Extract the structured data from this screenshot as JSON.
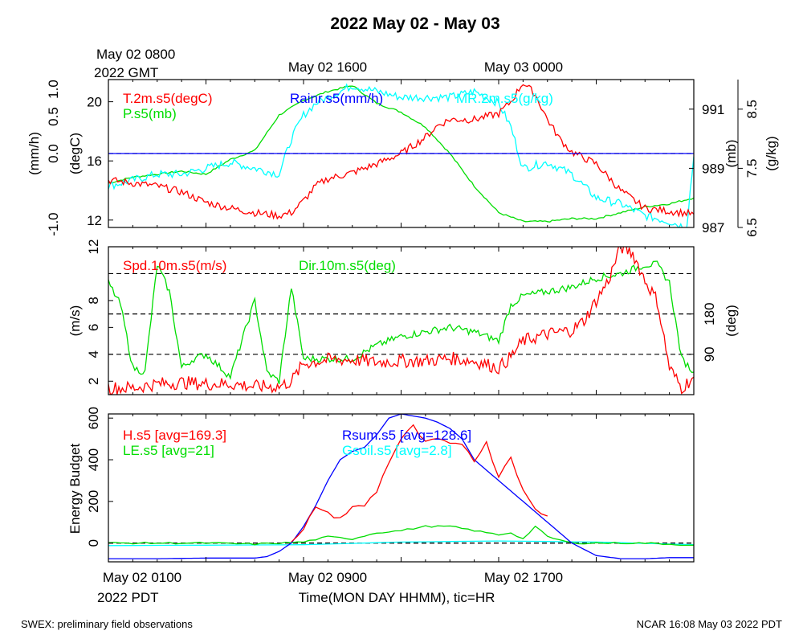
{
  "title": "2022 May 02 - May 03",
  "gmt_label_1": "May 02 0800",
  "gmt_label_2": "2022 GMT",
  "gmt_ticks": [
    "May 02 1600",
    "May 03 0000"
  ],
  "pdt_ticks": [
    "May 02 0100",
    "May 02 0900",
    "May 02 1700"
  ],
  "pdt_year": "2022 PDT",
  "xlabel": "Time(MON DAY HHMM), tic=HR",
  "footer_left": "SWEX: preliminary field observations",
  "footer_right": "NCAR 16:08 May 03 2022 PDT",
  "colors": {
    "red": "#ff0000",
    "green": "#00dd00",
    "blue": "#0000ff",
    "cyan": "#00ffff",
    "black": "#000000"
  },
  "chart_data": [
    {
      "type": "line",
      "panel": "top",
      "x_hours_local": [
        0,
        24
      ],
      "legend": {
        "temp": "T.2m.s5(degC)",
        "pres": "P.s5(mb)",
        "rain": "Rainr.s5(mm/h)",
        "mr": "MR.2m.s5(g/kg)"
      },
      "axes": {
        "rain": {
          "label": "(mm/h)",
          "ylim": [
            -1.0,
            1.0
          ],
          "ticks": [
            "1.0",
            "0.5",
            "0.0",
            "-1.0"
          ]
        },
        "temp": {
          "label": "(degC)",
          "ylim": [
            11.5,
            21.5
          ],
          "ticks": [
            "20",
            "16",
            "12"
          ]
        },
        "pres": {
          "label": "(mb)",
          "ylim": [
            987,
            992
          ],
          "ticks": [
            "991",
            "989",
            "987"
          ]
        },
        "mr": {
          "label": "(g/kg)",
          "ylim": [
            6.5,
            9.0
          ],
          "ticks": [
            "8.5",
            "7.5",
            "6.5"
          ]
        }
      },
      "series": [
        {
          "name": "T.2m.s5(degC)",
          "axis": "temp",
          "x": [
            0,
            1,
            2,
            3,
            4,
            5,
            6,
            7,
            7.5,
            8,
            8.5,
            9,
            10,
            11,
            12,
            13,
            13.5,
            14,
            15,
            16,
            16.5,
            17,
            17.5,
            18,
            18.5,
            19,
            20,
            21,
            22,
            23,
            24
          ],
          "y": [
            14.7,
            14.5,
            14.3,
            13.9,
            13.2,
            12.8,
            12.5,
            12.3,
            12.5,
            13.3,
            14.3,
            14.8,
            15.2,
            15.8,
            16.5,
            17.6,
            18.4,
            18.8,
            18.8,
            19.2,
            20.0,
            21.3,
            20.5,
            18.8,
            17.5,
            16.6,
            15.8,
            14.0,
            12.8,
            12.6,
            12.4
          ]
        },
        {
          "name": "P.s5(mb)",
          "axis": "pres",
          "x": [
            0,
            1,
            2,
            3,
            4,
            5,
            6,
            7,
            8,
            9,
            10,
            11,
            12,
            13,
            14,
            15,
            16,
            17,
            18,
            19,
            20,
            21,
            22,
            23,
            24
          ],
          "y": [
            988.5,
            988.7,
            988.8,
            988.9,
            988.8,
            989.3,
            989.6,
            990.8,
            991.3,
            991.6,
            991.8,
            991.2,
            990.9,
            990.4,
            989.5,
            988.4,
            987.5,
            987.2,
            987.2,
            987.3,
            987.3,
            987.5,
            987.7,
            987.8,
            988.0
          ]
        },
        {
          "name": "Rainr.s5(mm/h)",
          "axis": "rain",
          "x": [
            0,
            24
          ],
          "y": [
            0,
            0
          ]
        },
        {
          "name": "MR.2m.s5(g/kg)",
          "axis": "mr",
          "x": [
            0,
            1,
            2,
            3,
            4,
            5,
            6,
            7,
            7.5,
            8,
            8.5,
            9,
            10,
            11,
            12,
            13,
            14,
            15,
            16,
            16.5,
            17,
            18,
            19,
            20,
            21,
            22,
            23,
            23.7,
            24
          ],
          "y": [
            7.2,
            7.3,
            7.4,
            7.4,
            7.5,
            7.6,
            7.5,
            7.4,
            8.0,
            8.4,
            8.6,
            8.7,
            8.9,
            8.8,
            8.7,
            8.7,
            8.7,
            8.8,
            8.6,
            8.2,
            7.5,
            7.6,
            7.4,
            7.0,
            6.9,
            6.7,
            6.6,
            6.5,
            7.7
          ]
        }
      ]
    },
    {
      "type": "line",
      "panel": "middle",
      "x_hours_local": [
        0,
        24
      ],
      "legend": {
        "spd": "Spd.10m.s5(m/s)",
        "dir": "Dir.10m.s5(deg)"
      },
      "axes": {
        "spd": {
          "label": "(m/s)",
          "ylim": [
            1,
            12
          ],
          "ticks": [
            "12",
            "8",
            "6",
            "4",
            "2"
          ]
        },
        "dir": {
          "label": "(deg)",
          "ylim": [
            0,
            330
          ],
          "ticks": [
            "180",
            "90"
          ],
          "ref_lines": [
            90,
            180,
            270
          ]
        }
      },
      "series": [
        {
          "name": "Spd.10m.s5(m/s)",
          "axis": "spd",
          "x": [
            0,
            1,
            2,
            3,
            4,
            5,
            6,
            7,
            7.5,
            8,
            9,
            10,
            11,
            12,
            13,
            14,
            15,
            16,
            16.5,
            17,
            18,
            19,
            19.5,
            20,
            20.5,
            21,
            21.5,
            22,
            22.5,
            23,
            23.5,
            24
          ],
          "y": [
            1.5,
            1.5,
            1.8,
            1.9,
            1.8,
            1.8,
            1.6,
            1.6,
            2.0,
            3.3,
            3.6,
            3.6,
            3.4,
            3.5,
            3.5,
            3.7,
            3.5,
            3.0,
            3.8,
            5.0,
            5.5,
            5.8,
            6.5,
            8.0,
            9.5,
            12.0,
            11.5,
            9.5,
            8.0,
            3.0,
            1.5,
            2.3
          ]
        },
        {
          "name": "Dir.10m.s5(deg)",
          "axis": "dir",
          "x": [
            0,
            0.5,
            1,
            1.5,
            2,
            2.5,
            3,
            3.5,
            4,
            5,
            6,
            6.5,
            7,
            7.5,
            8,
            9,
            10,
            11,
            12,
            13,
            14,
            15,
            16,
            16.5,
            17,
            18,
            19,
            20,
            21,
            22,
            22.5,
            23,
            23.5,
            24
          ],
          "y": [
            250,
            200,
            60,
            50,
            290,
            230,
            60,
            80,
            90,
            40,
            210,
            50,
            30,
            240,
            80,
            80,
            80,
            110,
            130,
            140,
            150,
            140,
            120,
            200,
            220,
            230,
            240,
            260,
            270,
            290,
            290,
            250,
            80,
            50
          ]
        }
      ]
    },
    {
      "type": "line",
      "panel": "bottom",
      "ylabel": "Energy Budget",
      "ylim": [
        -90,
        620
      ],
      "yticks": [
        "600",
        "400",
        "200",
        "0"
      ],
      "x_hours_local": [
        0,
        24
      ],
      "legend": {
        "h": "H.s5 [avg=169.3]",
        "le": "LE.s5 [avg=21]",
        "rsum": "Rsum.s5 [avg=128.6]",
        "gsoil": "Gsoil.s5 [avg=2.8]"
      },
      "series": [
        {
          "name": "H.s5 [avg=169.3]",
          "x": [
            7.5,
            8,
            8.5,
            9,
            9.5,
            10,
            10.5,
            11,
            11.5,
            12,
            12.5,
            13,
            13.5,
            14,
            14.5,
            15,
            15.5,
            16,
            16.5,
            17,
            17.5,
            18
          ],
          "y": [
            0,
            60,
            180,
            140,
            120,
            170,
            180,
            250,
            390,
            500,
            560,
            480,
            500,
            470,
            480,
            400,
            480,
            320,
            420,
            250,
            160,
            130
          ]
        },
        {
          "name": "LE.s5 [avg=21]",
          "x": [
            0,
            2,
            4,
            6,
            7,
            8,
            9,
            10,
            11,
            12,
            13,
            14,
            15,
            16,
            16.5,
            17,
            17.5,
            18,
            19,
            20,
            22,
            24
          ],
          "y": [
            0,
            0,
            0,
            -5,
            0,
            5,
            30,
            20,
            50,
            60,
            80,
            80,
            60,
            40,
            50,
            20,
            80,
            30,
            0,
            0,
            0,
            -10
          ]
        },
        {
          "name": "Rsum.s5 [avg=128.6]",
          "x": [
            0,
            2,
            4,
            6,
            6.5,
            7,
            7.5,
            8,
            8.5,
            9,
            9.5,
            10,
            10.5,
            11,
            11.5,
            12,
            12.5,
            13,
            13.5,
            14,
            14.5,
            15,
            16,
            17,
            18,
            19,
            20,
            21,
            22,
            23,
            24
          ],
          "y": [
            -75,
            -75,
            -72,
            -72,
            -65,
            -40,
            0,
            80,
            180,
            300,
            400,
            440,
            460,
            520,
            600,
            620,
            610,
            600,
            580,
            550,
            500,
            400,
            300,
            200,
            100,
            0,
            -60,
            -75,
            -75,
            -70,
            -70
          ]
        },
        {
          "name": "Gsoil.s5 [avg=2.8]",
          "x": [
            0,
            4,
            8,
            12,
            16,
            20,
            24
          ],
          "y": [
            -12,
            -10,
            -8,
            5,
            10,
            5,
            -8
          ]
        }
      ]
    }
  ]
}
